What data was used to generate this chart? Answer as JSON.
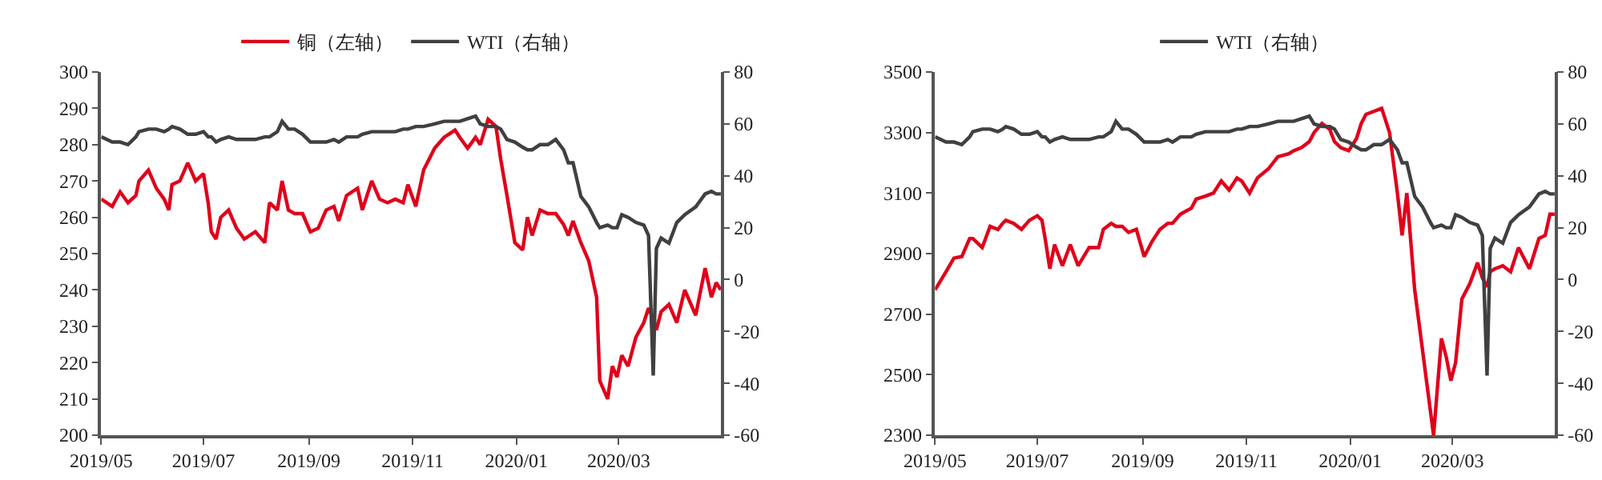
{
  "chart_data": [
    {
      "type": "line",
      "legend": "top",
      "x": [
        "2019-05-01",
        "2019-05-08",
        "2019-05-13",
        "2019-05-18",
        "2019-05-23",
        "2019-05-25",
        "2019-05-31",
        "2019-06-05",
        "2019-06-10",
        "2019-06-13",
        "2019-06-15",
        "2019-06-20",
        "2019-06-25",
        "2019-06-30",
        "2019-07-05",
        "2019-07-08",
        "2019-07-10",
        "2019-07-13",
        "2019-07-16",
        "2019-07-21",
        "2019-07-26",
        "2019-07-31",
        "2019-08-07",
        "2019-08-13",
        "2019-08-16",
        "2019-08-21",
        "2019-08-24",
        "2019-08-28",
        "2019-09-01",
        "2019-09-06",
        "2019-09-11",
        "2019-09-16",
        "2019-09-21",
        "2019-09-26",
        "2019-09-29",
        "2019-10-04",
        "2019-10-11",
        "2019-10-14",
        "2019-10-20",
        "2019-10-25",
        "2019-10-30",
        "2019-11-04",
        "2019-11-09",
        "2019-11-12",
        "2019-11-17",
        "2019-11-22",
        "2019-11-29",
        "2019-12-05",
        "2019-12-12",
        "2019-12-15",
        "2019-12-20",
        "2019-12-25",
        "2019-12-28",
        "2020-01-02",
        "2020-01-07",
        "2020-01-10",
        "2020-01-14",
        "2020-01-19",
        "2020-01-24",
        "2020-01-27",
        "2020-01-30",
        "2020-02-04",
        "2020-02-09",
        "2020-02-14",
        "2020-02-19",
        "2020-02-22",
        "2020-02-25",
        "2020-03-01",
        "2020-03-06",
        "2020-03-11",
        "2020-03-13",
        "2020-03-18",
        "2020-03-21",
        "2020-03-24",
        "2020-03-27",
        "2020-03-31",
        "2020-04-05",
        "2020-04-10",
        "2020-04-13",
        "2020-04-16",
        "2020-04-18",
        "2020-04-21",
        "2020-04-26",
        "2020-05-01",
        "2020-05-06",
        "2020-05-13",
        "2020-05-19",
        "2020-05-23",
        "2020-05-26",
        "2020-05-29"
      ],
      "xlim": [
        "2019-05-01",
        "2020-05-29"
      ],
      "xticks": [
        {
          "value": "2019-05-01",
          "label": "2019/05"
        },
        {
          "value": "2019-07-05",
          "label": "2019/07"
        },
        {
          "value": "2019-09-10",
          "label": "2019/09"
        },
        {
          "value": "2019-11-15",
          "label": "2019/11"
        },
        {
          "value": "2020-01-20",
          "label": "2020/01"
        },
        {
          "value": "2020-03-25",
          "label": "2020/03"
        }
      ],
      "ylim": [
        200,
        300
      ],
      "yticks": [
        200,
        210,
        220,
        230,
        240,
        250,
        260,
        270,
        280,
        290,
        300
      ],
      "y2lim": [
        -60,
        80
      ],
      "y2ticks": [
        -60,
        -40,
        -20,
        0,
        20,
        40,
        60,
        80
      ],
      "series": [
        {
          "name": "铜（左轴）",
          "color": "#e0001b",
          "values": [
            265,
            263,
            267,
            264,
            266,
            270,
            273,
            268,
            265,
            262,
            269,
            270,
            275,
            270,
            272,
            264,
            256,
            254,
            260,
            262,
            257,
            254,
            256,
            253,
            264,
            262,
            270,
            262,
            261,
            261,
            256,
            257,
            262,
            263,
            259,
            266,
            268,
            262,
            270,
            265,
            264,
            265,
            264,
            269,
            263,
            273,
            279,
            282,
            284,
            282,
            279,
            282,
            280,
            287,
            285,
            276,
            266,
            253,
            251,
            260,
            255,
            262,
            261,
            261,
            258,
            255,
            259,
            253,
            248,
            238,
            215,
            210,
            219,
            216,
            222,
            219,
            227,
            231,
            235,
            232,
            229,
            234,
            236,
            231,
            240,
            233,
            246,
            238,
            242,
            240
          ]
        },
        {
          "name": "WTI（右轴）",
          "color": "#404040",
          "axis": "y2",
          "values": [
            55,
            53,
            53,
            52,
            55,
            57,
            58,
            58,
            57,
            58,
            59,
            58,
            56,
            56,
            57,
            55,
            55,
            53,
            54,
            55,
            54,
            54,
            54,
            55,
            55,
            57,
            61,
            58,
            58,
            56,
            53,
            53,
            53,
            54,
            53,
            55,
            55,
            56,
            57,
            57,
            57,
            57,
            58,
            58,
            59,
            59,
            60,
            61,
            61,
            61,
            62,
            63,
            60,
            59,
            59,
            58,
            54,
            53,
            51,
            50,
            50,
            52,
            52,
            54,
            50,
            45,
            45,
            32,
            28,
            22,
            20,
            21,
            20,
            20,
            25,
            24,
            22,
            21,
            17,
            -37,
            12,
            16,
            14,
            22,
            25,
            28,
            33,
            34,
            33,
            33
          ]
        }
      ]
    },
    {
      "type": "line",
      "legend": "top",
      "x": [
        "2019-05-01",
        "2019-05-08",
        "2019-05-13",
        "2019-05-18",
        "2019-05-23",
        "2019-05-25",
        "2019-05-31",
        "2019-06-05",
        "2019-06-10",
        "2019-06-13",
        "2019-06-15",
        "2019-06-20",
        "2019-06-25",
        "2019-06-30",
        "2019-07-05",
        "2019-07-08",
        "2019-07-10",
        "2019-07-13",
        "2019-07-16",
        "2019-07-21",
        "2019-07-26",
        "2019-07-31",
        "2019-08-07",
        "2019-08-13",
        "2019-08-16",
        "2019-08-21",
        "2019-08-24",
        "2019-08-28",
        "2019-09-01",
        "2019-09-06",
        "2019-09-11",
        "2019-09-16",
        "2019-09-21",
        "2019-09-26",
        "2019-09-29",
        "2019-10-04",
        "2019-10-11",
        "2019-10-14",
        "2019-10-20",
        "2019-10-25",
        "2019-10-30",
        "2019-11-04",
        "2019-11-09",
        "2019-11-12",
        "2019-11-17",
        "2019-11-22",
        "2019-11-29",
        "2019-12-05",
        "2019-12-12",
        "2019-12-15",
        "2019-12-20",
        "2019-12-25",
        "2019-12-28",
        "2020-01-02",
        "2020-01-07",
        "2020-01-10",
        "2020-01-14",
        "2020-01-19",
        "2020-01-24",
        "2020-01-27",
        "2020-01-30",
        "2020-02-04",
        "2020-02-09",
        "2020-02-14",
        "2020-02-19",
        "2020-02-22",
        "2020-02-25",
        "2020-03-01",
        "2020-03-06",
        "2020-03-11",
        "2020-03-13",
        "2020-03-18",
        "2020-03-21",
        "2020-03-24",
        "2020-03-27",
        "2020-03-31",
        "2020-04-05",
        "2020-04-10",
        "2020-04-13",
        "2020-04-16",
        "2020-04-18",
        "2020-04-21",
        "2020-04-26",
        "2020-05-01",
        "2020-05-06",
        "2020-05-13",
        "2020-05-19",
        "2020-05-23",
        "2020-05-26",
        "2020-05-29"
      ],
      "xlim": [
        "2019-05-01",
        "2020-05-29"
      ],
      "xticks": [
        {
          "value": "2019-05-01",
          "label": "2019/05"
        },
        {
          "value": "2019-07-05",
          "label": "2019/07"
        },
        {
          "value": "2019-09-10",
          "label": "2019/09"
        },
        {
          "value": "2019-11-15",
          "label": "2019/11"
        },
        {
          "value": "2020-01-20",
          "label": "2020/01"
        },
        {
          "value": "2020-03-25",
          "label": "2020/03"
        }
      ],
      "ylim": [
        2300,
        3500
      ],
      "yticks": [
        2300,
        2500,
        2700,
        2900,
        3100,
        3300,
        3500
      ],
      "y2lim": [
        -60,
        80
      ],
      "y2ticks": [
        -60,
        -40,
        -20,
        0,
        20,
        40,
        60,
        80
      ],
      "series": [
        {
          "color": "#e0001b",
          "values": [
            2780,
            2840,
            2885,
            2890,
            2950,
            2950,
            2920,
            2990,
            2980,
            3000,
            3010,
            3000,
            2980,
            3010,
            3025,
            3010,
            2950,
            2850,
            2930,
            2860,
            2930,
            2860,
            2920,
            2920,
            2980,
            3000,
            2990,
            2990,
            2970,
            2980,
            2890,
            2940,
            2980,
            3000,
            3000,
            3030,
            3050,
            3080,
            3090,
            3100,
            3140,
            3110,
            3150,
            3140,
            3100,
            3150,
            3180,
            3220,
            3230,
            3240,
            3250,
            3270,
            3300,
            3330,
            3310,
            3270,
            3250,
            3240,
            3280,
            3330,
            3360,
            3370,
            3380,
            3300,
            3100,
            2960,
            3100,
            2780,
            2580,
            2380,
            2300,
            2620,
            2560,
            2480,
            2540,
            2750,
            2800,
            2870,
            2820,
            2790,
            2840,
            2850,
            2860,
            2840,
            2920,
            2850,
            2950,
            2960,
            3030,
            3030
          ]
        },
        {
          "name": "WTI（右轴）",
          "color": "#404040",
          "axis": "y2",
          "values": [
            55,
            53,
            53,
            52,
            55,
            57,
            58,
            58,
            57,
            58,
            59,
            58,
            56,
            56,
            57,
            55,
            55,
            53,
            54,
            55,
            54,
            54,
            54,
            55,
            55,
            57,
            61,
            58,
            58,
            56,
            53,
            53,
            53,
            54,
            53,
            55,
            55,
            56,
            57,
            57,
            57,
            57,
            58,
            58,
            59,
            59,
            60,
            61,
            61,
            61,
            62,
            63,
            60,
            59,
            59,
            58,
            54,
            53,
            51,
            50,
            50,
            52,
            52,
            54,
            50,
            45,
            45,
            32,
            28,
            22,
            20,
            21,
            20,
            20,
            25,
            24,
            22,
            21,
            17,
            -37,
            12,
            16,
            14,
            22,
            25,
            28,
            33,
            34,
            33,
            33
          ]
        }
      ]
    }
  ]
}
